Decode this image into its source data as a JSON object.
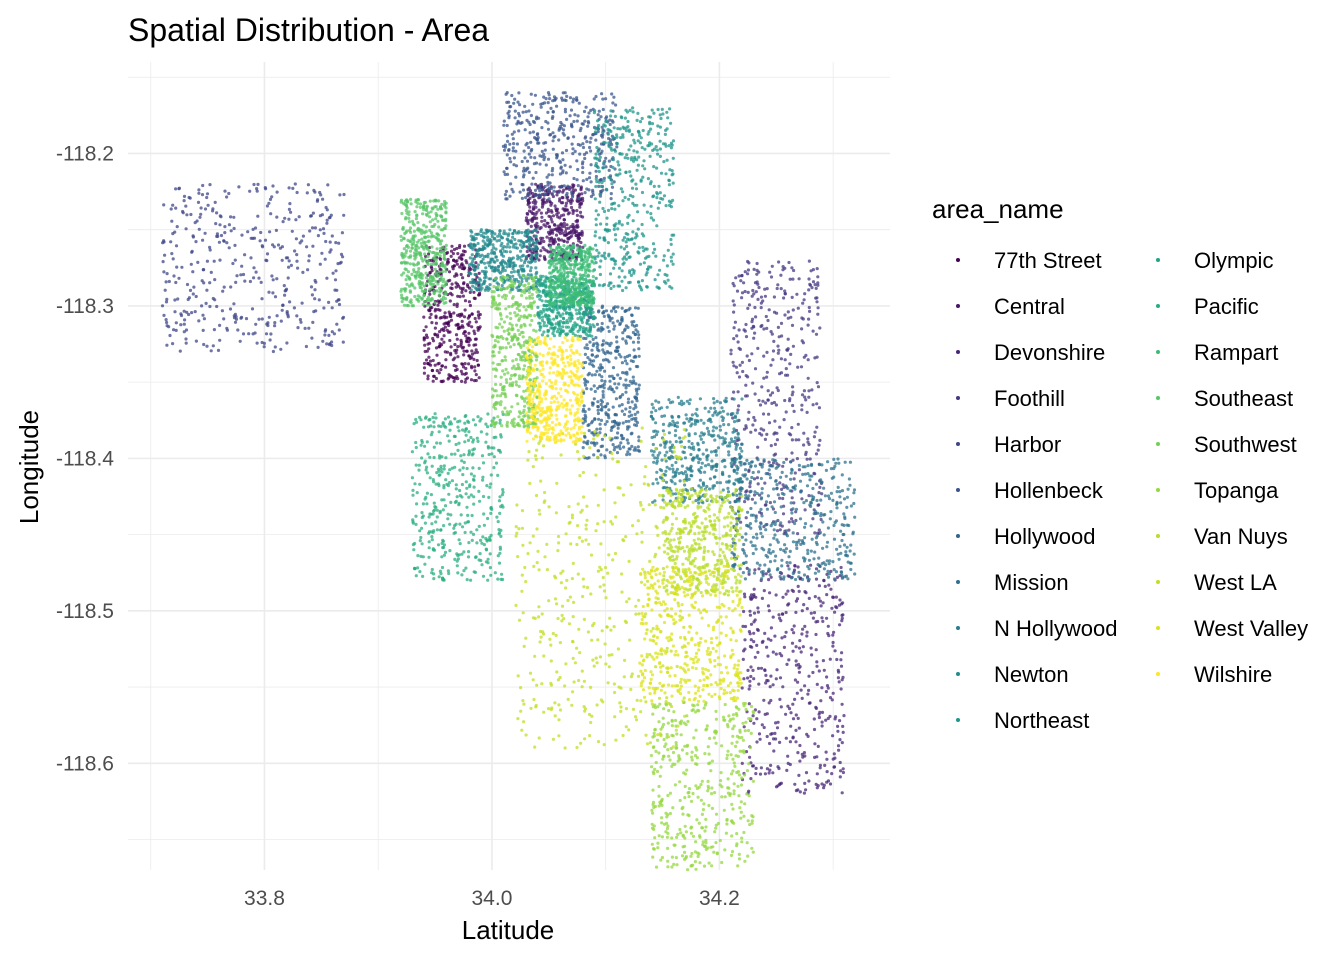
{
  "chart_data": {
    "type": "scatter",
    "title": "Spatial Distribution - Area",
    "xlabel": "Latitude",
    "ylabel": "Longitude",
    "xlim": [
      33.68,
      34.35
    ],
    "ylim": [
      -118.67,
      -118.14
    ],
    "x_ticks": [
      {
        "value": 33.8,
        "label": "33.8"
      },
      {
        "value": 34.0,
        "label": "34.0"
      },
      {
        "value": 34.2,
        "label": "34.2"
      }
    ],
    "y_ticks": [
      {
        "value": -118.2,
        "label": "-118.2"
      },
      {
        "value": -118.3,
        "label": "-118.3"
      },
      {
        "value": -118.4,
        "label": "-118.4"
      },
      {
        "value": -118.5,
        "label": "-118.5"
      },
      {
        "value": -118.6,
        "label": "-118.6"
      }
    ],
    "grid": true,
    "legend": {
      "title": "area_name",
      "placement": "right",
      "columns": 2
    },
    "series": [
      {
        "name": "77th Street",
        "color": "#440154",
        "x_range": [
          33.94,
          33.99
        ],
        "y_range": [
          -118.35,
          -118.26
        ]
      },
      {
        "name": "Central",
        "color": "#481568",
        "x_range": [
          34.03,
          34.08
        ],
        "y_range": [
          -118.27,
          -118.22
        ]
      },
      {
        "name": "Devonshire",
        "color": "#482677",
        "x_range": [
          34.22,
          34.31
        ],
        "y_range": [
          -118.62,
          -118.47
        ]
      },
      {
        "name": "Foothill",
        "color": "#453781",
        "x_range": [
          34.21,
          34.29
        ],
        "y_range": [
          -118.45,
          -118.27
        ]
      },
      {
        "name": "Harbor",
        "color": "#3F4788",
        "x_range": [
          33.71,
          33.87
        ],
        "y_range": [
          -118.33,
          -118.22
        ]
      },
      {
        "name": "Hollenbeck",
        "color": "#39558C",
        "x_range": [
          34.01,
          34.11
        ],
        "y_range": [
          -118.23,
          -118.16
        ]
      },
      {
        "name": "Hollywood",
        "color": "#32648E",
        "x_range": [
          34.08,
          34.13
        ],
        "y_range": [
          -118.4,
          -118.3
        ]
      },
      {
        "name": "Mission",
        "color": "#2D718E",
        "x_range": [
          34.21,
          34.32
        ],
        "y_range": [
          -118.48,
          -118.4
        ]
      },
      {
        "name": "N Hollywood",
        "color": "#287D8E",
        "x_range": [
          34.14,
          34.22
        ],
        "y_range": [
          -118.43,
          -118.36
        ]
      },
      {
        "name": "Newton",
        "color": "#238A8D",
        "x_range": [
          33.98,
          34.04
        ],
        "y_range": [
          -118.29,
          -118.25
        ]
      },
      {
        "name": "Northeast",
        "color": "#1F968B",
        "x_range": [
          34.09,
          34.16
        ],
        "y_range": [
          -118.29,
          -118.17
        ]
      },
      {
        "name": "Olympic",
        "color": "#20A386",
        "x_range": [
          34.04,
          34.09
        ],
        "y_range": [
          -118.32,
          -118.28
        ]
      },
      {
        "name": "Pacific",
        "color": "#29AF7F",
        "x_range": [
          33.93,
          34.01
        ],
        "y_range": [
          -118.48,
          -118.37
        ]
      },
      {
        "name": "Rampart",
        "color": "#3CBC75",
        "x_range": [
          34.05,
          34.09
        ],
        "y_range": [
          -118.3,
          -118.26
        ]
      },
      {
        "name": "Southeast",
        "color": "#56C667",
        "x_range": [
          33.92,
          33.96
        ],
        "y_range": [
          -118.3,
          -118.23
        ]
      },
      {
        "name": "Southwest",
        "color": "#75D054",
        "x_range": [
          34.0,
          34.04
        ],
        "y_range": [
          -118.38,
          -118.28
        ]
      },
      {
        "name": "Topanga",
        "color": "#95D840",
        "x_range": [
          34.14,
          34.23
        ],
        "y_range": [
          -118.67,
          -118.56
        ]
      },
      {
        "name": "Van Nuys",
        "color": "#B8DE29",
        "x_range": [
          34.15,
          34.22
        ],
        "y_range": [
          -118.49,
          -118.42
        ]
      },
      {
        "name": "West LA",
        "color": "#C2DF23",
        "x_range": [
          34.02,
          34.17
        ],
        "y_range": [
          -118.59,
          -118.38
        ]
      },
      {
        "name": "West Valley",
        "color": "#DCE319",
        "x_range": [
          34.13,
          34.22
        ],
        "y_range": [
          -118.56,
          -118.47
        ]
      },
      {
        "name": "Wilshire",
        "color": "#FDE725",
        "x_range": [
          34.03,
          34.08
        ],
        "y_range": [
          -118.39,
          -118.32
        ]
      }
    ]
  }
}
